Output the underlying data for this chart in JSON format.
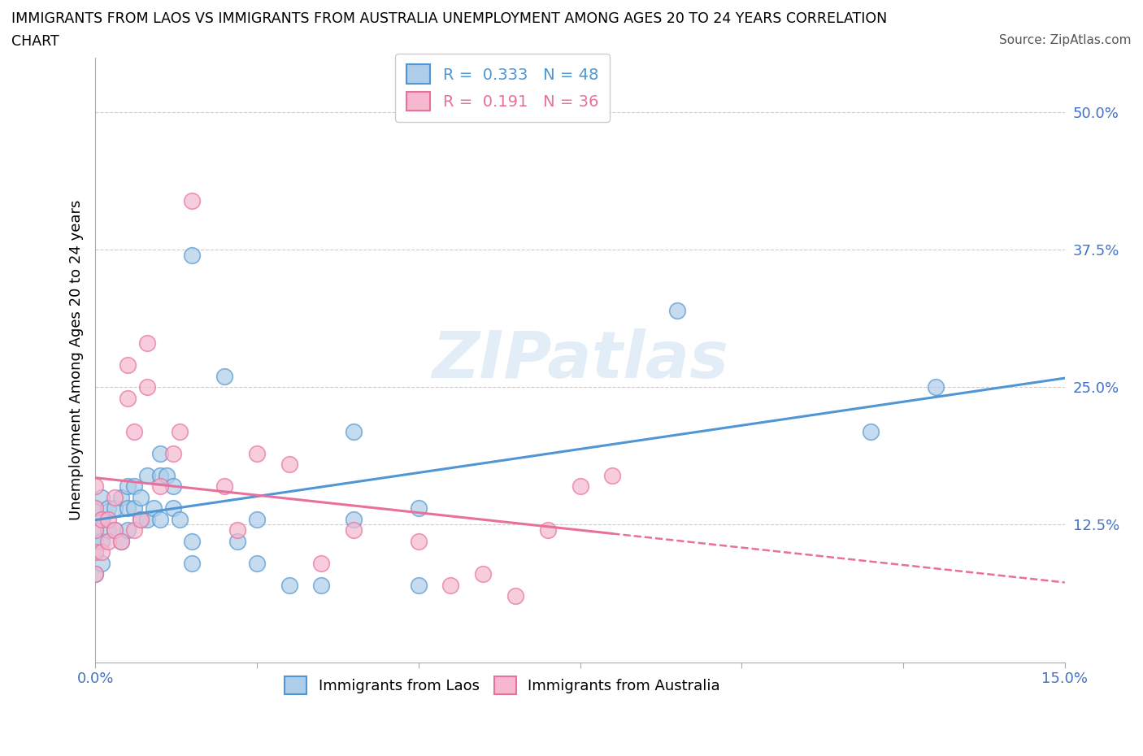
{
  "title_line1": "IMMIGRANTS FROM LAOS VS IMMIGRANTS FROM AUSTRALIA UNEMPLOYMENT AMONG AGES 20 TO 24 YEARS CORRELATION",
  "title_line2": "CHART",
  "source_text": "Source: ZipAtlas.com",
  "ylabel": "Unemployment Among Ages 20 to 24 years",
  "xlim": [
    0.0,
    0.15
  ],
  "ylim": [
    0.0,
    0.55
  ],
  "xticks": [
    0.0,
    0.025,
    0.05,
    0.075,
    0.1,
    0.125,
    0.15
  ],
  "yticks": [
    0.0,
    0.125,
    0.25,
    0.375,
    0.5
  ],
  "yticklabels_right": [
    "",
    "12.5%",
    "25.0%",
    "37.5%",
    "50.0%"
  ],
  "grid_color": "#cccccc",
  "watermark": "ZIPatlas",
  "laos_color": "#4e96d4",
  "laos_edge": "#4e96d4",
  "laos_fill": "#aecde8",
  "australia_color": "#e8709a",
  "australia_edge": "#e8709a",
  "australia_fill": "#f5b8cf",
  "laos_R": 0.333,
  "laos_N": 48,
  "australia_R": 0.191,
  "australia_N": 36,
  "laos_x": [
    0.0,
    0.0,
    0.0,
    0.0,
    0.0,
    0.001,
    0.001,
    0.001,
    0.001,
    0.002,
    0.002,
    0.003,
    0.003,
    0.004,
    0.004,
    0.005,
    0.005,
    0.005,
    0.006,
    0.006,
    0.007,
    0.007,
    0.008,
    0.008,
    0.009,
    0.01,
    0.01,
    0.01,
    0.011,
    0.012,
    0.012,
    0.013,
    0.015,
    0.015,
    0.015,
    0.02,
    0.022,
    0.025,
    0.025,
    0.03,
    0.035,
    0.04,
    0.04,
    0.05,
    0.05,
    0.09,
    0.12,
    0.13
  ],
  "laos_y": [
    0.08,
    0.1,
    0.11,
    0.12,
    0.14,
    0.09,
    0.11,
    0.13,
    0.15,
    0.12,
    0.14,
    0.12,
    0.14,
    0.11,
    0.15,
    0.12,
    0.14,
    0.16,
    0.14,
    0.16,
    0.13,
    0.15,
    0.13,
    0.17,
    0.14,
    0.13,
    0.17,
    0.19,
    0.17,
    0.14,
    0.16,
    0.13,
    0.09,
    0.11,
    0.37,
    0.26,
    0.11,
    0.09,
    0.13,
    0.07,
    0.07,
    0.13,
    0.21,
    0.07,
    0.14,
    0.32,
    0.21,
    0.25
  ],
  "australia_x": [
    0.0,
    0.0,
    0.0,
    0.0,
    0.0,
    0.001,
    0.001,
    0.002,
    0.002,
    0.003,
    0.003,
    0.004,
    0.005,
    0.005,
    0.006,
    0.006,
    0.007,
    0.008,
    0.008,
    0.01,
    0.012,
    0.013,
    0.015,
    0.02,
    0.022,
    0.025,
    0.03,
    0.035,
    0.04,
    0.05,
    0.055,
    0.06,
    0.065,
    0.07,
    0.075,
    0.08
  ],
  "australia_y": [
    0.08,
    0.1,
    0.12,
    0.14,
    0.16,
    0.1,
    0.13,
    0.11,
    0.13,
    0.12,
    0.15,
    0.11,
    0.24,
    0.27,
    0.12,
    0.21,
    0.13,
    0.25,
    0.29,
    0.16,
    0.19,
    0.21,
    0.42,
    0.16,
    0.12,
    0.19,
    0.18,
    0.09,
    0.12,
    0.11,
    0.07,
    0.08,
    0.06,
    0.12,
    0.16,
    0.17
  ],
  "legend_box_color": "#ffffff",
  "legend_border_color": "#cccccc",
  "tick_label_color": "#4472c4"
}
